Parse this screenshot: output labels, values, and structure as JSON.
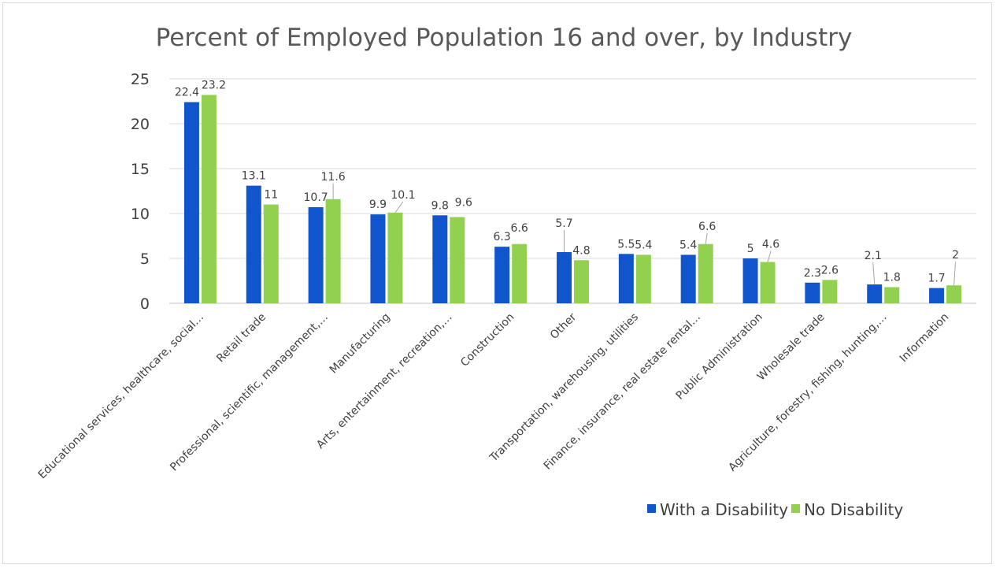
{
  "chart_data": {
    "type": "bar",
    "title": "Percent of Employed Population 16 and over, by Industry",
    "xlabel": "",
    "ylabel": "",
    "ylim": [
      0,
      25
    ],
    "yticks": [
      0,
      5,
      10,
      15,
      20,
      25
    ],
    "grid": true,
    "legend_position": "bottom-right",
    "categories": [
      "Educational services, healthcare, social…",
      "Retail trade",
      "Professional, scientific, management,…",
      "Manufacturing",
      "Arts, entertainment, recreation,…",
      "Construction",
      "Other",
      "Transportation, warehousing, utilities",
      "Finance, insurance, real estate rental…",
      "Public Administration",
      "Wholesale trade",
      "Agriculture, forestry, fishing, hunting,…",
      "Information"
    ],
    "series": [
      {
        "name": "With a Disability",
        "color": "#1155cc",
        "values": [
          22.4,
          13.1,
          10.7,
          9.9,
          9.8,
          6.3,
          5.7,
          5.5,
          5.4,
          5,
          2.3,
          2.1,
          1.7
        ]
      },
      {
        "name": "No Disability",
        "color": "#92d050",
        "values": [
          23.2,
          11,
          11.6,
          10.1,
          9.6,
          6.6,
          4.8,
          5.4,
          6.6,
          4.6,
          2.6,
          1.8,
          2
        ]
      }
    ]
  }
}
